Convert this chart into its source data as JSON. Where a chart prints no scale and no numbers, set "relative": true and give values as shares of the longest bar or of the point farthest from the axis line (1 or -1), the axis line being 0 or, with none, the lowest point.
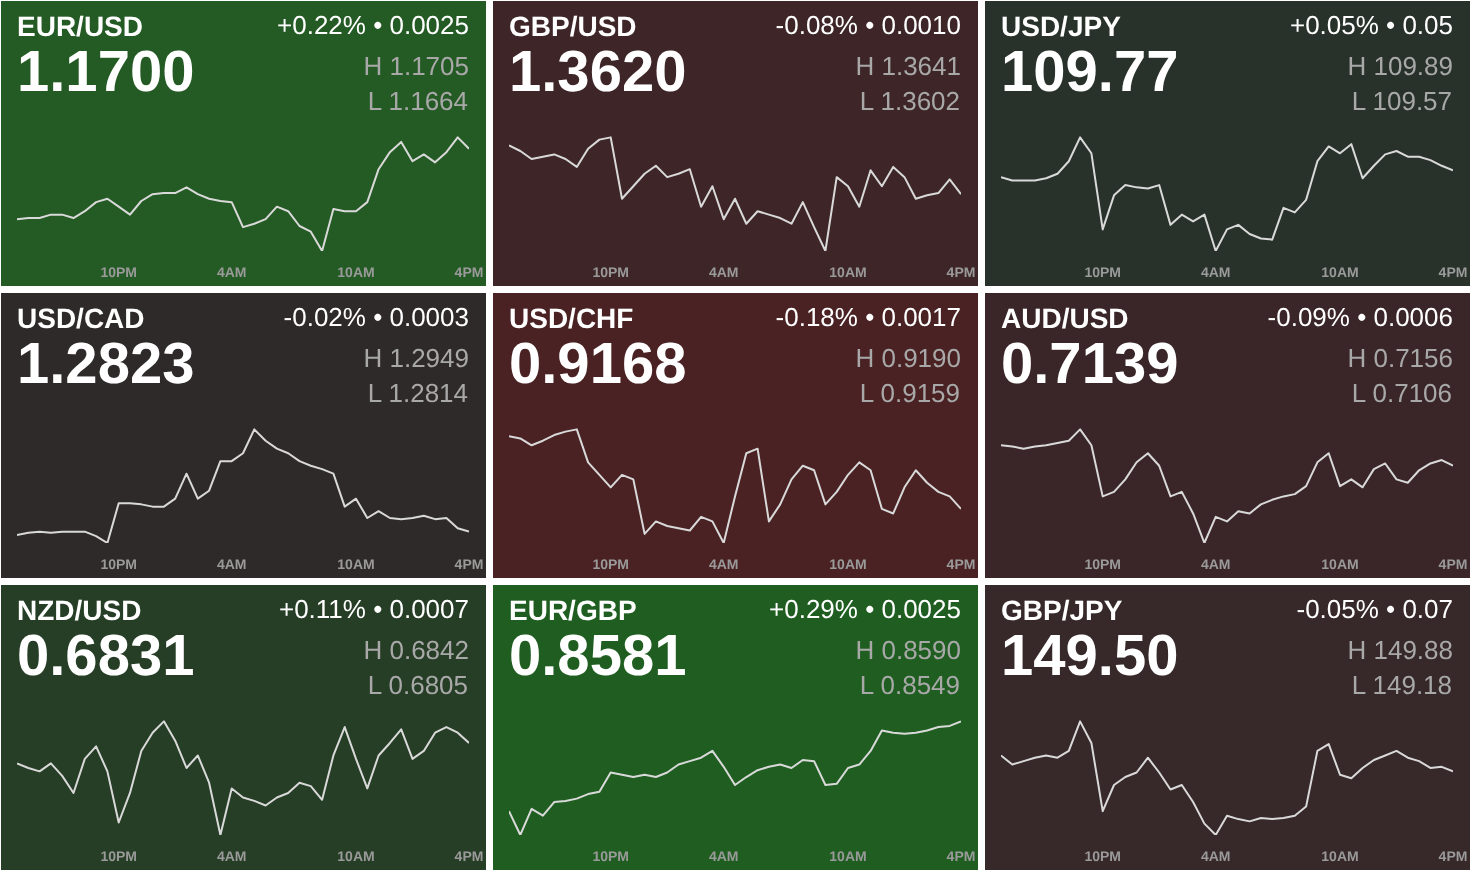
{
  "chart_data": [
    {
      "type": "line",
      "title": "EUR/USD",
      "subtitle": "1.1700",
      "annotations": [
        "+0.22% • 0.0025",
        "H 1.1705",
        "L 1.1664"
      ],
      "relative": true,
      "categories": [
        null,
        null,
        null,
        null,
        null,
        null,
        null,
        null,
        null,
        "10PM",
        null,
        null,
        null,
        null,
        null,
        null,
        null,
        null,
        null,
        "4AM",
        null,
        null,
        null,
        null,
        null,
        null,
        null,
        null,
        null,
        null,
        "10AM",
        null,
        null,
        null,
        null,
        null,
        null,
        null,
        null,
        null,
        "4PM"
      ],
      "series": [
        {
          "color": "#d9d9d9",
          "values": [
            0.28,
            0.29,
            0.29,
            0.32,
            0.32,
            0.29,
            0.35,
            0.43,
            0.46,
            0.39,
            0.32,
            0.44,
            0.5,
            0.51,
            0.51,
            0.56,
            0.5,
            0.46,
            0.44,
            0.43,
            0.21,
            0.24,
            0.28,
            0.39,
            0.35,
            0.22,
            0.17,
            0,
            0.37,
            0.35,
            0.35,
            0.43,
            0.72,
            0.87,
            0.96,
            0.79,
            0.85,
            0.78,
            0.87,
            1.0,
            0.9
          ]
        }
      ]
    },
    {
      "type": "line",
      "title": "GBP/USD",
      "subtitle": "1.3620",
      "annotations": [
        "-0.08% • 0.0010",
        "H 1.3641",
        "L 1.3602"
      ],
      "relative": true,
      "categories": [
        null,
        null,
        null,
        null,
        null,
        null,
        null,
        null,
        null,
        "10PM",
        null,
        null,
        null,
        null,
        null,
        null,
        null,
        null,
        null,
        "4AM",
        null,
        null,
        null,
        null,
        null,
        null,
        null,
        null,
        null,
        null,
        "10AM",
        null,
        null,
        null,
        null,
        null,
        null,
        null,
        null,
        null,
        "4PM"
      ],
      "series": [
        {
          "color": "#d9d9d9",
          "values": [
            0.93,
            0.88,
            0.81,
            0.83,
            0.85,
            0.81,
            0.74,
            0.9,
            0.98,
            1.0,
            0.46,
            0.57,
            0.68,
            0.75,
            0.65,
            0.68,
            0.72,
            0.39,
            0.57,
            0.28,
            0.46,
            0.24,
            0.35,
            0.32,
            0.29,
            0.24,
            0.43,
            0.21,
            0,
            0.65,
            0.57,
            0.39,
            0.71,
            0.57,
            0.74,
            0.65,
            0.46,
            0.49,
            0.51,
            0.63,
            0.5
          ]
        }
      ]
    },
    {
      "type": "line",
      "title": "USD/JPY",
      "subtitle": "109.77",
      "annotations": [
        "+0.05% • 0.05",
        "H 109.89",
        "L 109.57"
      ],
      "relative": true,
      "categories": [
        null,
        null,
        null,
        null,
        null,
        null,
        null,
        null,
        null,
        "10PM",
        null,
        null,
        null,
        null,
        null,
        null,
        null,
        null,
        null,
        "4AM",
        null,
        null,
        null,
        null,
        null,
        null,
        null,
        null,
        null,
        null,
        "10AM",
        null,
        null,
        null,
        null,
        null,
        null,
        null,
        null,
        null,
        "4PM"
      ],
      "series": [
        {
          "color": "#d9d9d9",
          "values": [
            0.65,
            0.62,
            0.62,
            0.62,
            0.64,
            0.68,
            0.79,
            1.0,
            0.86,
            0.19,
            0.49,
            0.58,
            0.56,
            0.55,
            0.58,
            0.23,
            0.32,
            0.26,
            0.32,
            0,
            0.19,
            0.23,
            0.15,
            0.11,
            0.1,
            0.38,
            0.34,
            0.45,
            0.79,
            0.92,
            0.86,
            0.94,
            0.64,
            0.75,
            0.85,
            0.88,
            0.83,
            0.83,
            0.8,
            0.75,
            0.71
          ]
        }
      ]
    },
    {
      "type": "line",
      "title": "USD/CAD",
      "subtitle": "1.2823",
      "annotations": [
        "-0.02% • 0.0003",
        "H 1.2949",
        "L 1.2814"
      ],
      "relative": true,
      "categories": [
        null,
        null,
        null,
        null,
        null,
        null,
        null,
        null,
        null,
        "10PM",
        null,
        null,
        null,
        null,
        null,
        null,
        null,
        null,
        null,
        "4AM",
        null,
        null,
        null,
        null,
        null,
        null,
        null,
        null,
        null,
        null,
        "10AM",
        null,
        null,
        null,
        null,
        null,
        null,
        null,
        null,
        null,
        "4PM"
      ],
      "series": [
        {
          "color": "#d9d9d9",
          "values": [
            0.07,
            0.09,
            0.1,
            0.09,
            0.1,
            0.1,
            0.1,
            0.06,
            0,
            0.35,
            0.35,
            0.34,
            0.32,
            0.32,
            0.39,
            0.61,
            0.39,
            0.46,
            0.72,
            0.72,
            0.79,
            1.0,
            0.9,
            0.83,
            0.79,
            0.72,
            0.68,
            0.65,
            0.61,
            0.32,
            0.39,
            0.22,
            0.28,
            0.22,
            0.21,
            0.22,
            0.24,
            0.21,
            0.22,
            0.13,
            0.1
          ]
        }
      ]
    },
    {
      "type": "line",
      "title": "USD/CHF",
      "subtitle": "0.9168",
      "annotations": [
        "-0.18% • 0.0017",
        "H 0.9190",
        "L 0.9159"
      ],
      "relative": true,
      "categories": [
        null,
        null,
        null,
        null,
        null,
        null,
        null,
        null,
        null,
        "10PM",
        null,
        null,
        null,
        null,
        null,
        null,
        null,
        null,
        null,
        "4AM",
        null,
        null,
        null,
        null,
        null,
        null,
        null,
        null,
        null,
        null,
        "10AM",
        null,
        null,
        null,
        null,
        null,
        null,
        null,
        null,
        null,
        "4PM"
      ],
      "series": [
        {
          "color": "#d9d9d9",
          "values": [
            0.94,
            0.92,
            0.86,
            0.9,
            0.95,
            0.98,
            1.0,
            0.71,
            0.6,
            0.49,
            0.6,
            0.56,
            0.08,
            0.19,
            0.15,
            0.13,
            0.11,
            0.23,
            0.19,
            0,
            0.41,
            0.79,
            0.83,
            0.19,
            0.34,
            0.56,
            0.68,
            0.64,
            0.34,
            0.45,
            0.6,
            0.71,
            0.64,
            0.3,
            0.26,
            0.49,
            0.64,
            0.53,
            0.45,
            0.41,
            0.3
          ]
        }
      ]
    },
    {
      "type": "line",
      "title": "AUD/USD",
      "subtitle": "0.7139",
      "annotations": [
        "-0.09% • 0.0006",
        "H 0.7156",
        "L 0.7106"
      ],
      "relative": true,
      "categories": [
        null,
        null,
        null,
        null,
        null,
        null,
        null,
        null,
        null,
        "10PM",
        null,
        null,
        null,
        null,
        null,
        null,
        null,
        null,
        null,
        "4AM",
        null,
        null,
        null,
        null,
        null,
        null,
        null,
        null,
        null,
        null,
        "10AM",
        null,
        null,
        null,
        null,
        null,
        null,
        null,
        null,
        null,
        "4PM"
      ],
      "series": [
        {
          "color": "#d9d9d9",
          "values": [
            0.86,
            0.85,
            0.83,
            0.85,
            0.86,
            0.88,
            0.9,
            1.0,
            0.86,
            0.41,
            0.45,
            0.56,
            0.71,
            0.79,
            0.68,
            0.41,
            0.45,
            0.26,
            0,
            0.23,
            0.19,
            0.28,
            0.26,
            0.34,
            0.38,
            0.41,
            0.43,
            0.5,
            0.71,
            0.79,
            0.5,
            0.56,
            0.49,
            0.65,
            0.7,
            0.56,
            0.53,
            0.64,
            0.7,
            0.73,
            0.68
          ]
        }
      ]
    },
    {
      "type": "line",
      "title": "NZD/USD",
      "subtitle": "0.6831",
      "annotations": [
        "+0.11% • 0.0007",
        "H 0.6842",
        "L 0.6805"
      ],
      "relative": true,
      "categories": [
        null,
        null,
        null,
        null,
        null,
        null,
        null,
        null,
        null,
        "10PM",
        null,
        null,
        null,
        null,
        null,
        null,
        null,
        null,
        null,
        "4AM",
        null,
        null,
        null,
        null,
        null,
        null,
        null,
        null,
        null,
        null,
        "10AM",
        null,
        null,
        null,
        null,
        null,
        null,
        null,
        null,
        null,
        "4PM"
      ],
      "series": [
        {
          "color": "#d9d9d9",
          "values": [
            0.63,
            0.59,
            0.56,
            0.63,
            0.52,
            0.37,
            0.67,
            0.78,
            0.56,
            0.11,
            0.37,
            0.74,
            0.9,
            1.0,
            0.83,
            0.59,
            0.7,
            0.46,
            0,
            0.41,
            0.33,
            0.3,
            0.26,
            0.33,
            0.37,
            0.46,
            0.43,
            0.31,
            0.7,
            0.95,
            0.67,
            0.41,
            0.7,
            0.81,
            0.93,
            0.67,
            0.74,
            0.9,
            0.95,
            0.9,
            0.81
          ]
        }
      ]
    },
    {
      "type": "line",
      "title": "EUR/GBP",
      "subtitle": "0.8581",
      "annotations": [
        "+0.29% • 0.0025",
        "H 0.8590",
        "L 0.8549"
      ],
      "relative": true,
      "categories": [
        null,
        null,
        null,
        null,
        null,
        null,
        null,
        null,
        null,
        "10PM",
        null,
        null,
        null,
        null,
        null,
        null,
        null,
        null,
        null,
        "4AM",
        null,
        null,
        null,
        null,
        null,
        null,
        null,
        null,
        null,
        null,
        "10AM",
        null,
        null,
        null,
        null,
        null,
        null,
        null,
        null,
        null,
        "4PM"
      ],
      "series": [
        {
          "color": "#d9d9d9",
          "values": [
            0.21,
            0,
            0.23,
            0.17,
            0.29,
            0.3,
            0.32,
            0.36,
            0.38,
            0.55,
            0.53,
            0.51,
            0.53,
            0.51,
            0.55,
            0.62,
            0.65,
            0.68,
            0.74,
            0.6,
            0.44,
            0.51,
            0.57,
            0.6,
            0.62,
            0.59,
            0.66,
            0.65,
            0.44,
            0.45,
            0.59,
            0.62,
            0.74,
            0.92,
            0.9,
            0.89,
            0.9,
            0.92,
            0.95,
            0.96,
            1.0
          ]
        }
      ]
    },
    {
      "type": "line",
      "title": "GBP/JPY",
      "subtitle": "149.50",
      "annotations": [
        "-0.05% • 0.07",
        "H 149.88",
        "L 149.18"
      ],
      "relative": true,
      "categories": [
        null,
        null,
        null,
        null,
        null,
        null,
        null,
        null,
        null,
        "10PM",
        null,
        null,
        null,
        null,
        null,
        null,
        null,
        null,
        null,
        "4AM",
        null,
        null,
        null,
        null,
        null,
        null,
        null,
        null,
        null,
        null,
        "10AM",
        null,
        null,
        null,
        null,
        null,
        null,
        null,
        null,
        null,
        "4PM"
      ],
      "series": [
        {
          "color": "#d9d9d9",
          "values": [
            0.7,
            0.62,
            0.65,
            0.68,
            0.7,
            0.68,
            0.74,
            1.0,
            0.81,
            0.21,
            0.44,
            0.51,
            0.55,
            0.68,
            0.55,
            0.4,
            0.44,
            0.29,
            0.1,
            0,
            0.17,
            0.14,
            0.12,
            0.15,
            0.14,
            0.15,
            0.17,
            0.25,
            0.74,
            0.8,
            0.53,
            0.5,
            0.59,
            0.66,
            0.7,
            0.74,
            0.68,
            0.65,
            0.59,
            0.6,
            0.56
          ]
        }
      ]
    }
  ]
}
